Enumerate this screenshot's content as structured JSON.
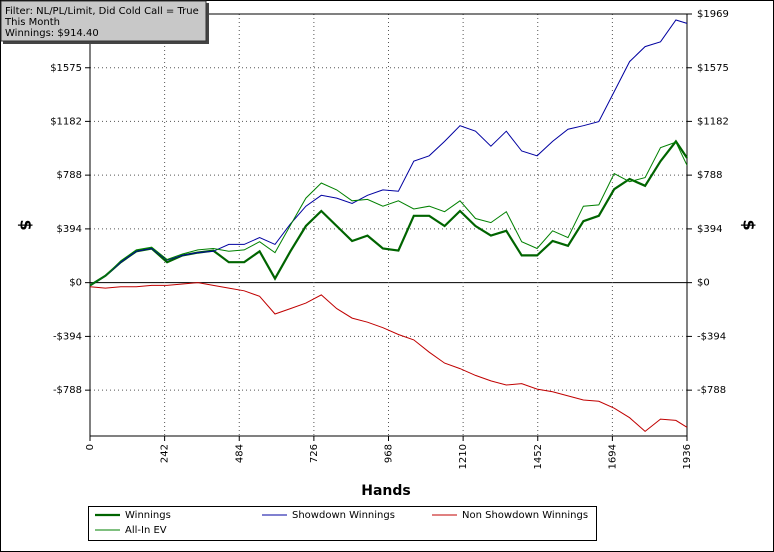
{
  "chart_data": {
    "type": "line",
    "annotations": [
      "Filter: NL/PL/Limit, Did Cold Call = True",
      "This Month",
      "Winnings: $914.40"
    ],
    "x_label": "Hands",
    "y_label": "$",
    "y2_label": "$",
    "x": [
      0,
      50,
      100,
      150,
      200,
      250,
      300,
      350,
      400,
      450,
      500,
      550,
      600,
      650,
      700,
      750,
      800,
      850,
      900,
      950,
      1000,
      1050,
      1100,
      1150,
      1200,
      1250,
      1300,
      1350,
      1400,
      1450,
      1500,
      1550,
      1600,
      1650,
      1700,
      1750,
      1800,
      1850,
      1900,
      1936
    ],
    "series": [
      {
        "name": "Winnings",
        "color": "#006400",
        "width": 2.2,
        "values": [
          -20,
          50,
          150,
          230,
          250,
          150,
          200,
          220,
          235,
          150,
          150,
          230,
          30,
          230,
          415,
          525,
          415,
          305,
          345,
          250,
          235,
          490,
          490,
          415,
          525,
          415,
          345,
          380,
          200,
          200,
          305,
          270,
          450,
          490,
          685,
          760,
          710,
          890,
          1035,
          914
        ]
      },
      {
        "name": "Showdown Winnings",
        "color": "#0000a0",
        "width": 1,
        "values": [
          -20,
          50,
          150,
          230,
          250,
          165,
          200,
          220,
          230,
          280,
          280,
          330,
          280,
          430,
          560,
          640,
          620,
          580,
          640,
          680,
          670,
          890,
          930,
          1035,
          1150,
          1110,
          1000,
          1110,
          965,
          930,
          1035,
          1125,
          1150,
          1180,
          1400,
          1620,
          1730,
          1765,
          1925,
          1900
        ]
      },
      {
        "name": "Non Showdown Winnings",
        "color": "#c00000",
        "width": 1,
        "values": [
          -30,
          -40,
          -30,
          -30,
          -20,
          -20,
          -10,
          0,
          -20,
          -40,
          -60,
          -100,
          -230,
          -190,
          -150,
          -90,
          -190,
          -260,
          -290,
          -330,
          -380,
          -420,
          -510,
          -590,
          -630,
          -680,
          -720,
          -750,
          -740,
          -780,
          -800,
          -830,
          -860,
          -870,
          -920,
          -990,
          -1090,
          -1000,
          -1010,
          -1060
        ]
      },
      {
        "name": "All-In EV",
        "color": "#008000",
        "width": 1,
        "values": [
          -20,
          50,
          160,
          240,
          260,
          170,
          210,
          240,
          250,
          230,
          240,
          300,
          220,
          420,
          620,
          730,
          680,
          600,
          610,
          560,
          600,
          540,
          560,
          520,
          600,
          470,
          440,
          520,
          300,
          250,
          380,
          330,
          560,
          570,
          800,
          740,
          770,
          990,
          1030,
          860
        ]
      }
    ],
    "xlim": [
      0,
      1936
    ],
    "xticks": [
      0,
      242,
      484,
      726,
      968,
      1210,
      1452,
      1694,
      1936
    ],
    "ylim": [
      -1124,
      1969
    ],
    "yticks": [
      {
        "value": -788,
        "label": "-$788"
      },
      {
        "value": -394,
        "label": "-$394"
      },
      {
        "value": 0,
        "label": "$0"
      },
      {
        "value": 394,
        "label": "$394"
      },
      {
        "value": 788,
        "label": "$788"
      },
      {
        "value": 1182,
        "label": "$1182"
      },
      {
        "value": 1575,
        "label": "$1575"
      },
      {
        "value": 1969,
        "label": "$1969"
      }
    ],
    "y2lim": [
      -1124,
      1969
    ],
    "y2ticks": [
      {
        "value": -788,
        "label": "-$788"
      },
      {
        "value": -394,
        "label": "-$394"
      },
      {
        "value": 0,
        "label": "$0"
      },
      {
        "value": 394,
        "label": "$394"
      },
      {
        "value": 788,
        "label": "$788"
      },
      {
        "value": 1182,
        "label": "$1182"
      },
      {
        "value": 1575,
        "label": "$1575"
      },
      {
        "value": 1969,
        "label": "$1969"
      }
    ],
    "grid": true
  }
}
